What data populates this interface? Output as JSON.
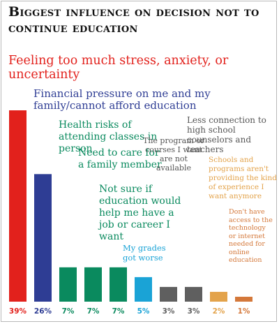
{
  "title": "Biggest influence on decision not to continue education",
  "chart_data": {
    "type": "bar",
    "title": "Biggest influence on decision not to continue education",
    "categories": [
      "Feeling too much stress, anxiety, or uncertainty",
      "Financial pressure on me and my family/cannot afford education",
      "Health risks of attending classes in person",
      "Need to care for a family member",
      "Not sure if education would help me have a job or career I want",
      "My grades got worse",
      "The program or courses I want are not available",
      "Less connection to high school counselors and teachers",
      "Schools and programs aren't providing the kind of experience I want anymore",
      "Don't have access to the technology or internet needed for online education"
    ],
    "values": [
      39,
      26,
      7,
      7,
      7,
      5,
      3,
      3,
      2,
      1
    ],
    "value_labels": [
      "39%",
      "26%",
      "7%",
      "7%",
      "7%",
      "5%",
      "3%",
      "3%",
      "2%",
      "1%"
    ],
    "colors": [
      "#e2211c",
      "#2e3d94",
      "#0a8a5e",
      "#0a8a5e",
      "#0a8a5e",
      "#1aa3d6",
      "#5f5f5f",
      "#5f5f5f",
      "#e3a34b",
      "#d4783a"
    ],
    "ylim": [
      0,
      39
    ]
  }
}
